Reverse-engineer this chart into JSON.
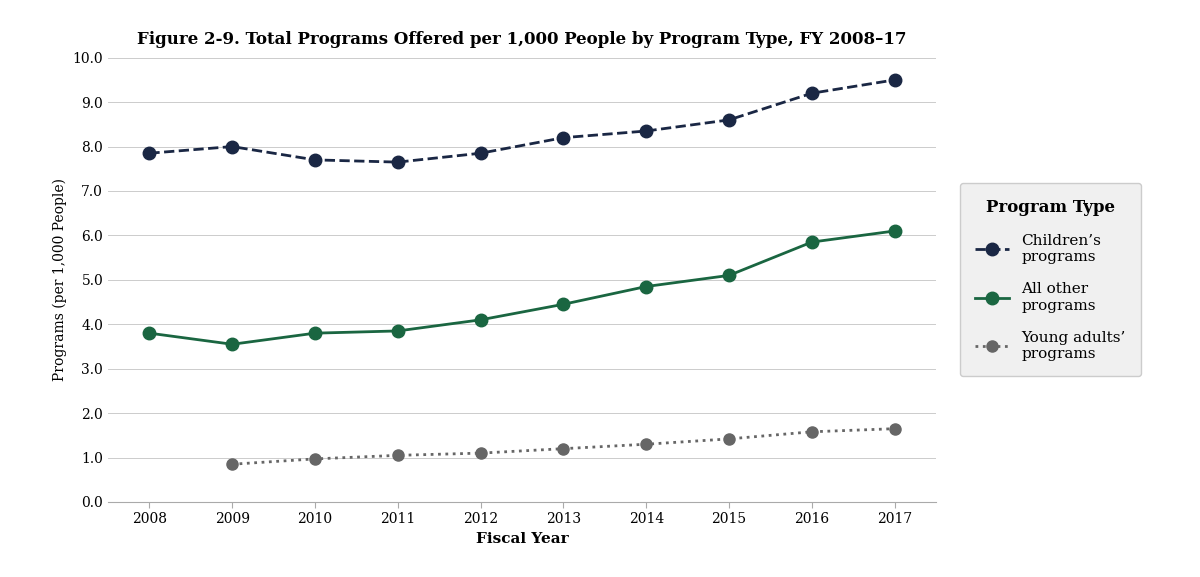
{
  "title": "Figure 2-9. Total Programs Offered per 1,000 People by Program Type, FY 2008–17",
  "xlabel": "Fiscal Year",
  "ylabel": "Programs (per 1,000 People)",
  "years": [
    2008,
    2009,
    2010,
    2011,
    2012,
    2013,
    2014,
    2015,
    2016,
    2017
  ],
  "childrens_programs": [
    7.85,
    8.0,
    7.7,
    7.65,
    7.85,
    8.2,
    8.35,
    8.6,
    9.2,
    9.5
  ],
  "all_other_programs": [
    3.8,
    3.55,
    3.8,
    3.85,
    4.1,
    4.45,
    4.85,
    5.1,
    5.85,
    6.1
  ],
  "young_adults_programs": [
    null,
    0.85,
    0.97,
    1.05,
    1.1,
    1.2,
    1.3,
    1.42,
    1.58,
    1.65
  ],
  "childrens_color": "#1a2744",
  "all_other_color": "#1a6641",
  "young_adults_color": "#666666",
  "background_color": "#ffffff",
  "ylim": [
    0.0,
    10.0
  ],
  "yticks": [
    0.0,
    1.0,
    2.0,
    3.0,
    4.0,
    5.0,
    6.0,
    7.0,
    8.0,
    9.0,
    10.0
  ],
  "legend_title": "Program Type",
  "legend_labels": [
    "Children’s\nprograms",
    "All other\nprograms",
    "Young adults’\nprograms"
  ],
  "figsize": [
    12.0,
    5.77
  ],
  "dpi": 100
}
